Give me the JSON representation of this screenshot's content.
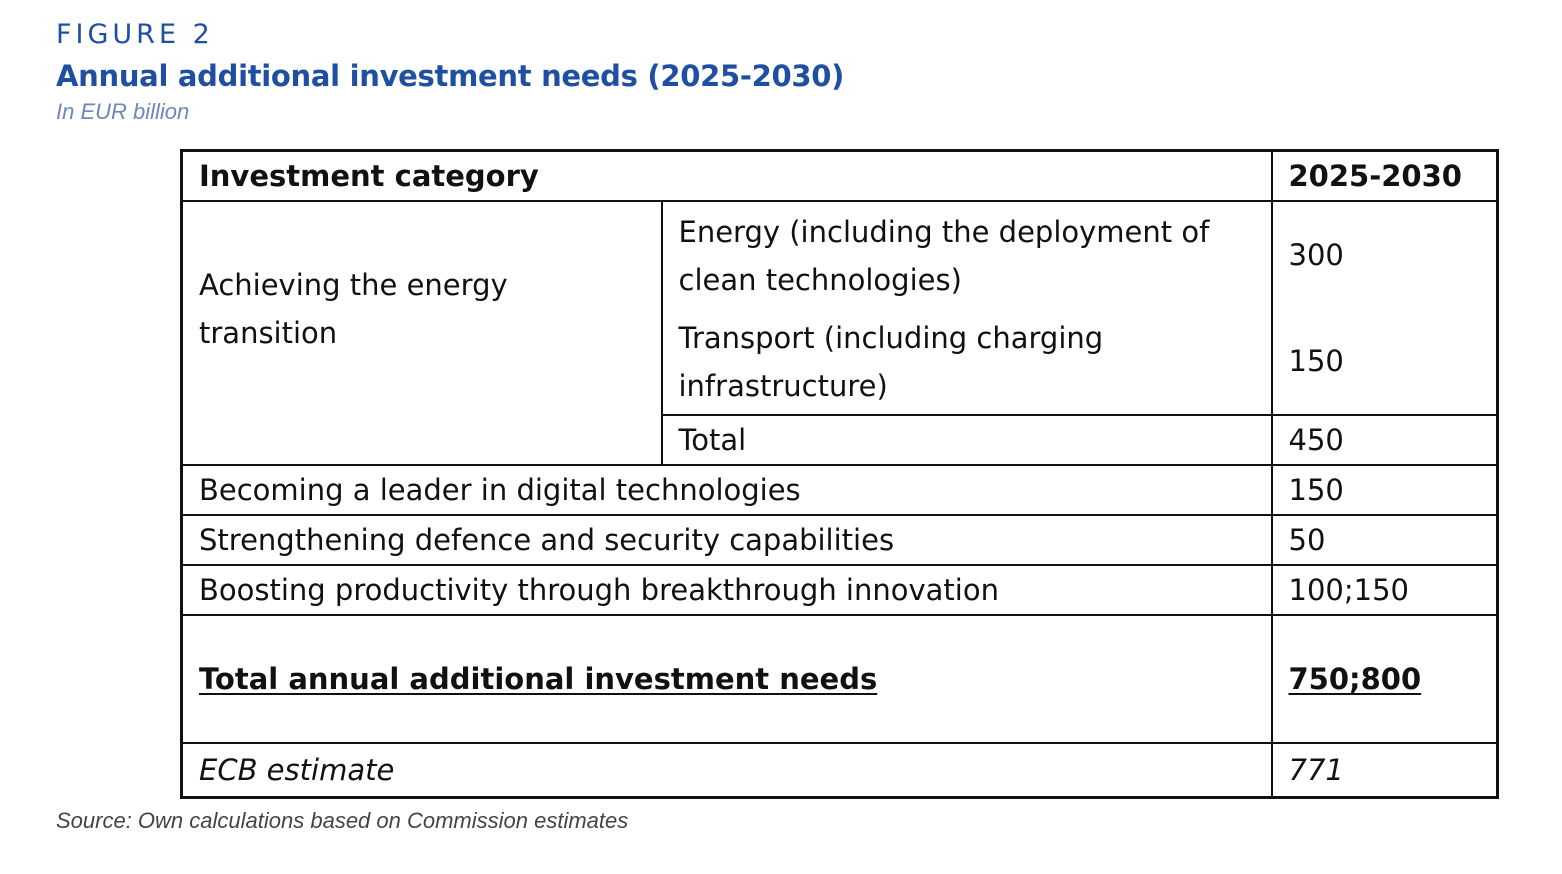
{
  "figure": {
    "label": "FIGURE 2",
    "title": "Annual additional investment needs (2025-2030)",
    "subtitle": "In EUR billion",
    "source": "Source: Own calculations based on Commission estimates"
  },
  "table": {
    "headers": {
      "category": "Investment category",
      "period": "2025-2030"
    },
    "energy_transition": {
      "label": "Achieving the energy transition",
      "sub_rows": [
        {
          "label": "Energy (including the deployment of clean technologies)",
          "value": "300"
        },
        {
          "label": "Transport (including charging infrastructure)",
          "value": "150"
        }
      ],
      "total_label": "Total",
      "total_value": "450"
    },
    "rows": [
      {
        "label": "Becoming a leader in digital technologies",
        "value": "150"
      },
      {
        "label": "Strengthening defence and security capabilities",
        "value": "50"
      },
      {
        "label": "Boosting productivity through breakthrough innovation",
        "value": "100;150"
      }
    ],
    "grand_total": {
      "label": "Total annual additional investment needs",
      "value": "750;800"
    },
    "ecb_estimate": {
      "label": "ECB estimate",
      "value": "771"
    }
  }
}
